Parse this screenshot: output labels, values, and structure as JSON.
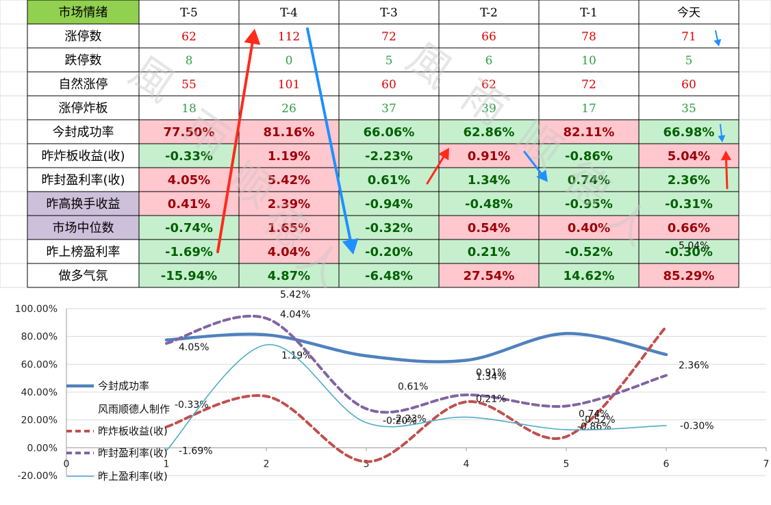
{
  "table": {
    "corner": "市场情绪",
    "columns": [
      "T-5",
      "T-4",
      "T-3",
      "T-2",
      "T-1",
      "今天"
    ],
    "count_rows": [
      {
        "label": "涨停数",
        "values": [
          "62",
          "112",
          "72",
          "66",
          "78",
          "71"
        ],
        "color": "red"
      },
      {
        "label": "跌停数",
        "values": [
          "8",
          "0",
          "5",
          "6",
          "10",
          "5"
        ],
        "color": "green"
      },
      {
        "label": "自然涨停",
        "values": [
          "55",
          "101",
          "60",
          "62",
          "72",
          "60"
        ],
        "color": "red"
      },
      {
        "label": "涨停炸板",
        "values": [
          "18",
          "26",
          "37",
          "39",
          "17",
          "35"
        ],
        "color": "green"
      }
    ],
    "pct_rows": [
      {
        "label": "今封成功率",
        "label_bg": "white",
        "bold": false,
        "values": [
          "77.50%",
          "81.16%",
          "66.06%",
          "62.86%",
          "82.11%",
          "66.98%"
        ],
        "tones": [
          "pink",
          "pink",
          "green",
          "green",
          "pink",
          "green"
        ]
      },
      {
        "label": "昨炸板收益(收)",
        "label_bg": "white",
        "bold": true,
        "values": [
          "-0.33%",
          "1.19%",
          "-2.23%",
          "0.91%",
          "-0.86%",
          "5.04%"
        ],
        "tones": [
          "green",
          "pink",
          "green",
          "pink",
          "green",
          "pink"
        ]
      },
      {
        "label": "昨封盈利率(收)",
        "label_bg": "white",
        "bold": true,
        "values": [
          "4.05%",
          "5.42%",
          "0.61%",
          "1.34%",
          "0.74%",
          "2.36%"
        ],
        "tones": [
          "pink",
          "pink",
          "green",
          "green",
          "green",
          "green"
        ]
      },
      {
        "label": "昨高换手收益",
        "label_bg": "purple",
        "bold": true,
        "values": [
          "0.41%",
          "2.39%",
          "-0.94%",
          "-0.48%",
          "-0.95%",
          "-0.31%"
        ],
        "tones": [
          "pink",
          "pink",
          "green",
          "green",
          "green",
          "green"
        ]
      },
      {
        "label": "市场中位数",
        "label_bg": "purple",
        "bold": true,
        "values": [
          "-0.74%",
          "1.65%",
          "-0.32%",
          "0.54%",
          "0.40%",
          "0.66%"
        ],
        "tones": [
          "green",
          "pink",
          "green",
          "pink",
          "pink",
          "pink"
        ]
      },
      {
        "label": "昨上榜盈利率",
        "label_bg": "white",
        "bold": true,
        "values": [
          "-1.69%",
          "4.04%",
          "-0.20%",
          "0.21%",
          "-0.52%",
          "-0.30%"
        ],
        "tones": [
          "green",
          "pink",
          "green",
          "green",
          "green",
          "green"
        ]
      },
      {
        "label": "做多气氛",
        "label_bg": "white",
        "bold": true,
        "values": [
          "-15.94%",
          "4.87%",
          "-6.48%",
          "27.54%",
          "14.62%",
          "85.29%"
        ],
        "tones": [
          "green",
          "green",
          "green",
          "pink",
          "green",
          "pink"
        ]
      }
    ]
  },
  "colors": {
    "header_green": "#92d050",
    "purple_label": "#ccc0da",
    "pink_cell": "#ffc7ce",
    "green_cell": "#c6efce",
    "red_text": "#e00000",
    "green_text": "#2ea043",
    "pink_cell_text": "#9c0006",
    "green_cell_text": "#006100",
    "series_blue": "#4f81bd",
    "series_red": "#c0504d",
    "series_purple": "#8064a2",
    "series_teal": "#4bacc6",
    "arrow_red": "#ff2a1a",
    "arrow_blue": "#1e90ff"
  },
  "watermark": "風雨顺德人",
  "chart_data": {
    "type": "line",
    "x_ticks": [
      "0",
      "1",
      "2",
      "3",
      "4",
      "5",
      "6",
      "7"
    ],
    "y_ticks": [
      "100.00%",
      "80.00%",
      "60.00%",
      "40.00%",
      "20.00%",
      "0.00%",
      "-20.00%"
    ],
    "xlim": [
      0,
      7
    ],
    "ylim": [
      -20,
      100
    ],
    "smooth": true,
    "legend_note": "风雨顺德人制作",
    "series": [
      {
        "name": "今封成功率",
        "style": "solid-thick",
        "color": "#4f81bd",
        "x": [
          1,
          2,
          3,
          4,
          5,
          6
        ],
        "y": [
          77.5,
          81.16,
          66.06,
          62.86,
          82.11,
          66.98
        ],
        "labels": [
          "",
          "",
          "",
          "",
          "",
          ""
        ]
      },
      {
        "name": "昨炸板收益(收)",
        "style": "dashed",
        "color": "#c0504d",
        "x": [
          1,
          2,
          3,
          4,
          5,
          6
        ],
        "y": [
          15,
          37,
          -10,
          33,
          8,
          87
        ],
        "labels": [
          "-0.33%",
          "1.19%",
          "-2.23%",
          "0.91%",
          "-0.86%",
          "5.04%"
        ]
      },
      {
        "name": "昨封盈利率(收)",
        "style": "dashed",
        "color": "#8064a2",
        "x": [
          1,
          2,
          3,
          4,
          5,
          6
        ],
        "y": [
          75,
          93,
          28,
          38,
          30,
          52
        ],
        "labels": [
          "4.05%",
          "5.42%",
          "0.61%",
          "1.34%",
          "0.74%",
          "2.36%"
        ]
      },
      {
        "name": "昨上盈利率(收)",
        "style": "solid-thin",
        "color": "#4bacc6",
        "x": [
          1,
          2,
          3,
          4,
          5,
          6
        ],
        "y": [
          -2,
          74,
          18,
          22,
          13,
          16
        ],
        "labels": [
          "-1.69%",
          "4.04%",
          "-0.20%",
          "0.21%",
          "-0.52%",
          "-0.30%"
        ]
      }
    ]
  }
}
